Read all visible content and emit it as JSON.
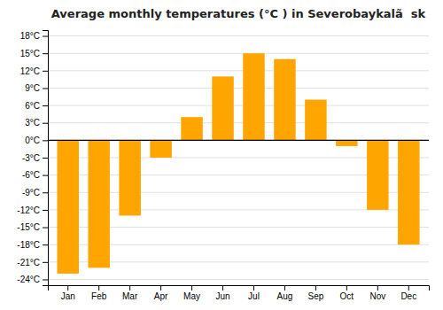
{
  "chart_data": {
    "type": "bar",
    "title": "Average monthly temperatures (°C ) in Severobaykalã  sk",
    "categories": [
      "Jan",
      "Feb",
      "Mar",
      "Apr",
      "May",
      "Jun",
      "Jul",
      "Aug",
      "Sep",
      "Oct",
      "Nov",
      "Dec"
    ],
    "values": [
      -23,
      -22,
      -13,
      -3,
      4,
      11,
      15,
      14,
      7,
      -1,
      -12,
      -18
    ],
    "color": "#FFA500",
    "ylim": [
      -25,
      19
    ],
    "yticks": [
      {
        "value": -24,
        "label": "-24°C"
      },
      {
        "value": -21,
        "label": "-21°C"
      },
      {
        "value": -18,
        "label": "-18°C"
      },
      {
        "value": -15,
        "label": "-15°C"
      },
      {
        "value": -12,
        "label": "-12°C"
      },
      {
        "value": -9,
        "label": "-9°C"
      },
      {
        "value": -6,
        "label": "-6°C"
      },
      {
        "value": -3,
        "label": "-3°C"
      },
      {
        "value": 0,
        "label": "0°C"
      },
      {
        "value": 3,
        "label": "3°C"
      },
      {
        "value": 6,
        "label": "6°C"
      },
      {
        "value": 9,
        "label": "9°C"
      },
      {
        "value": 12,
        "label": "12°C"
      },
      {
        "value": 15,
        "label": "15°C"
      },
      {
        "value": 18,
        "label": "18°C"
      }
    ],
    "grid": true
  }
}
